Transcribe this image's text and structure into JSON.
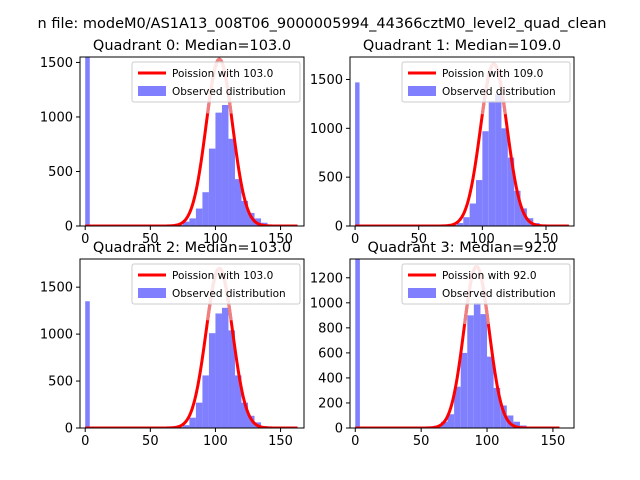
{
  "figure": {
    "suptitle": "n file: modeM0/AS1A13_008T06_9000005994_44366cztM0_level2_quad_clean"
  },
  "colors": {
    "hist": "#8080ff",
    "fit": "#ff0000",
    "fit_peak": "#f08080",
    "axes": "#000000",
    "background": "#ffffff"
  },
  "chart_data": [
    {
      "type": "bar",
      "title": "Quadrant 0: Median=103.0",
      "xlabel": "",
      "ylabel": "",
      "xlim": [
        -4,
        168
      ],
      "ylim": [
        0,
        1550
      ],
      "xticks": [
        0,
        50,
        100,
        150
      ],
      "yticks": [
        0,
        500,
        1000,
        1500
      ],
      "legend_position": "upper right",
      "series": [
        {
          "name": "Poission with 103.0",
          "kind": "line",
          "lambda": 103.0,
          "peak": 1530,
          "x_range": [
            0,
            163
          ]
        },
        {
          "name": "Observed distribution",
          "kind": "histogram",
          "bins": [
            {
              "x0": 0,
              "x1": 3.5,
              "y": 1550
            },
            {
              "x0": 70,
              "x1": 75,
              "y": 10
            },
            {
              "x0": 75,
              "x1": 80,
              "y": 40
            },
            {
              "x0": 80,
              "x1": 85,
              "y": 70
            },
            {
              "x0": 85,
              "x1": 90,
              "y": 160
            },
            {
              "x0": 90,
              "x1": 95,
              "y": 310
            },
            {
              "x0": 95,
              "x1": 100,
              "y": 710
            },
            {
              "x0": 100,
              "x1": 105,
              "y": 1040
            },
            {
              "x0": 105,
              "x1": 110,
              "y": 1110
            },
            {
              "x0": 110,
              "x1": 115,
              "y": 800
            },
            {
              "x0": 115,
              "x1": 120,
              "y": 430
            },
            {
              "x0": 120,
              "x1": 125,
              "y": 230
            },
            {
              "x0": 125,
              "x1": 130,
              "y": 120
            },
            {
              "x0": 130,
              "x1": 135,
              "y": 70
            },
            {
              "x0": 135,
              "x1": 140,
              "y": 30
            },
            {
              "x0": 140,
              "x1": 145,
              "y": 10
            }
          ]
        }
      ]
    },
    {
      "type": "bar",
      "title": "Quadrant 1: Median=109.0",
      "xlabel": "",
      "ylabel": "",
      "xlim": [
        -4,
        172
      ],
      "ylim": [
        0,
        1730
      ],
      "xticks": [
        0,
        50,
        100,
        150
      ],
      "yticks": [
        0,
        500,
        1000,
        1500
      ],
      "legend_position": "upper right",
      "series": [
        {
          "name": "Poission with 109.0",
          "kind": "line",
          "lambda": 109.0,
          "peak": 1660,
          "x_range": [
            0,
            168
          ]
        },
        {
          "name": "Observed distribution",
          "kind": "histogram",
          "bins": [
            {
              "x0": 0,
              "x1": 3.5,
              "y": 1470
            },
            {
              "x0": 75,
              "x1": 80,
              "y": 10
            },
            {
              "x0": 80,
              "x1": 85,
              "y": 30
            },
            {
              "x0": 85,
              "x1": 90,
              "y": 90
            },
            {
              "x0": 90,
              "x1": 95,
              "y": 230
            },
            {
              "x0": 95,
              "x1": 100,
              "y": 470
            },
            {
              "x0": 100,
              "x1": 105,
              "y": 970
            },
            {
              "x0": 105,
              "x1": 110,
              "y": 1280
            },
            {
              "x0": 110,
              "x1": 115,
              "y": 1350
            },
            {
              "x0": 115,
              "x1": 120,
              "y": 1000
            },
            {
              "x0": 120,
              "x1": 125,
              "y": 700
            },
            {
              "x0": 125,
              "x1": 130,
              "y": 360
            },
            {
              "x0": 130,
              "x1": 135,
              "y": 180
            },
            {
              "x0": 135,
              "x1": 140,
              "y": 80
            },
            {
              "x0": 140,
              "x1": 145,
              "y": 30
            },
            {
              "x0": 145,
              "x1": 150,
              "y": 10
            }
          ]
        }
      ]
    },
    {
      "type": "bar",
      "title": "Quadrant 2: Median=103.0",
      "xlabel": "",
      "ylabel": "",
      "xlim": [
        -4,
        168
      ],
      "ylim": [
        0,
        1800
      ],
      "xticks": [
        0,
        50,
        100,
        150
      ],
      "yticks": [
        0,
        500,
        1000,
        1500
      ],
      "legend_position": "upper right",
      "series": [
        {
          "name": "Poission with 103.0",
          "kind": "line",
          "lambda": 103.0,
          "peak": 1700,
          "x_range": [
            0,
            163
          ]
        },
        {
          "name": "Observed distribution",
          "kind": "histogram",
          "bins": [
            {
              "x0": 0,
              "x1": 3.5,
              "y": 1350
            },
            {
              "x0": 70,
              "x1": 75,
              "y": 10
            },
            {
              "x0": 75,
              "x1": 80,
              "y": 30
            },
            {
              "x0": 80,
              "x1": 85,
              "y": 110
            },
            {
              "x0": 85,
              "x1": 90,
              "y": 270
            },
            {
              "x0": 90,
              "x1": 95,
              "y": 560
            },
            {
              "x0": 95,
              "x1": 100,
              "y": 1010
            },
            {
              "x0": 100,
              "x1": 105,
              "y": 1220
            },
            {
              "x0": 105,
              "x1": 110,
              "y": 1280
            },
            {
              "x0": 110,
              "x1": 115,
              "y": 1040
            },
            {
              "x0": 115,
              "x1": 120,
              "y": 560
            },
            {
              "x0": 120,
              "x1": 125,
              "y": 270
            },
            {
              "x0": 125,
              "x1": 130,
              "y": 130
            },
            {
              "x0": 130,
              "x1": 135,
              "y": 60
            },
            {
              "x0": 135,
              "x1": 140,
              "y": 20
            },
            {
              "x0": 140,
              "x1": 145,
              "y": 10
            }
          ]
        }
      ]
    },
    {
      "type": "bar",
      "title": "Quadrant 3: Median=92.0",
      "xlabel": "",
      "ylabel": "",
      "xlim": [
        -4,
        166
      ],
      "ylim": [
        0,
        1350
      ],
      "xticks": [
        0,
        50,
        100,
        150
      ],
      "yticks": [
        0,
        200,
        400,
        600,
        800,
        1000,
        1200
      ],
      "legend_position": "upper right",
      "series": [
        {
          "name": "Poission with 92.0",
          "kind": "line",
          "lambda": 92.0,
          "peak": 1290,
          "x_range": [
            0,
            155
          ]
        },
        {
          "name": "Observed distribution",
          "kind": "histogram",
          "bins": [
            {
              "x0": 0,
              "x1": 3.5,
              "y": 1350
            },
            {
              "x0": 55,
              "x1": 60,
              "y": 10
            },
            {
              "x0": 60,
              "x1": 65,
              "y": 20
            },
            {
              "x0": 65,
              "x1": 70,
              "y": 50
            },
            {
              "x0": 70,
              "x1": 75,
              "y": 110
            },
            {
              "x0": 75,
              "x1": 80,
              "y": 330
            },
            {
              "x0": 80,
              "x1": 85,
              "y": 600
            },
            {
              "x0": 85,
              "x1": 90,
              "y": 900
            },
            {
              "x0": 90,
              "x1": 95,
              "y": 1000
            },
            {
              "x0": 95,
              "x1": 100,
              "y": 910
            },
            {
              "x0": 100,
              "x1": 105,
              "y": 570
            },
            {
              "x0": 105,
              "x1": 110,
              "y": 320
            },
            {
              "x0": 110,
              "x1": 115,
              "y": 180
            },
            {
              "x0": 115,
              "x1": 120,
              "y": 100
            },
            {
              "x0": 120,
              "x1": 125,
              "y": 50
            },
            {
              "x0": 125,
              "x1": 130,
              "y": 20
            }
          ]
        }
      ]
    }
  ]
}
